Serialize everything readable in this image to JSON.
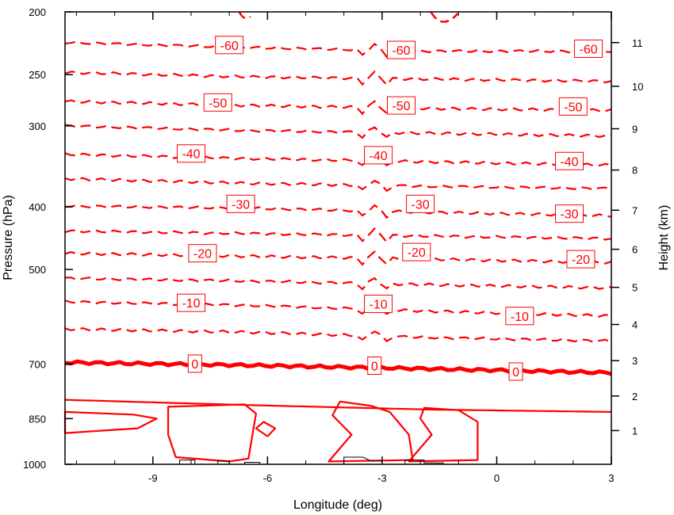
{
  "chart_data": {
    "type": "contour",
    "xlabel": "Longitude (deg)",
    "ylabel_left": "Pressure (hPa)",
    "ylabel_right": "Height (km)",
    "xlim": [
      -11.3,
      3.0
    ],
    "x_ticks": [
      -9,
      -6,
      -3,
      0,
      3
    ],
    "x_tick_labels": [
      "-9",
      "-6",
      "-3",
      "0",
      "3"
    ],
    "pressure_lim": [
      1000,
      200
    ],
    "pressure_ticks": [
      200,
      250,
      300,
      400,
      500,
      700,
      850,
      1000
    ],
    "pressure_tick_labels": [
      "200",
      "250",
      "300",
      "400",
      "500",
      "700",
      "850",
      "1000"
    ],
    "height_ticks_km": [
      1,
      2,
      3,
      4,
      5,
      6,
      7,
      8,
      9,
      10,
      11
    ],
    "height_tick_labels": [
      "1",
      "2",
      "3",
      "4",
      "5",
      "6",
      "7",
      "8",
      "9",
      "10",
      "11"
    ],
    "contour_interval": 5,
    "line_color": "#ff0000",
    "terrain_color": "#000000",
    "contours": [
      {
        "value": -65,
        "style": "dashed",
        "label": "",
        "p": [
          201,
          204,
          206,
          204
        ],
        "x_range": [
          -6.5,
          -1.0
        ]
      },
      {
        "value": -60,
        "style": "dashed",
        "label": "-60",
        "p": [
          223,
          227,
          230,
          230
        ],
        "label_x": [
          -7.0,
          -2.5,
          2.4
        ],
        "label_p": [
          225,
          229,
          228
        ]
      },
      {
        "value": -55,
        "style": "dashed",
        "label": "",
        "p": [
          248,
          252,
          254,
          256
        ]
      },
      {
        "value": -50,
        "style": "dashed",
        "label": "-50",
        "p": [
          275,
          279,
          282,
          284
        ],
        "label_x": [
          -7.3,
          -2.5,
          2.0
        ],
        "label_p": [
          276,
          279,
          280
        ]
      },
      {
        "value": -45,
        "style": "dashed",
        "label": "",
        "p": [
          300,
          305,
          308,
          311
        ]
      },
      {
        "value": -40,
        "style": "dashed",
        "label": "-40",
        "p": [
          332,
          337,
          341,
          345
        ],
        "label_x": [
          -8.0,
          -3.1,
          1.9
        ],
        "label_p": [
          331,
          333,
          340
        ]
      },
      {
        "value": -35,
        "style": "dashed",
        "label": "",
        "p": [
          362,
          368,
          372,
          375
        ]
      },
      {
        "value": -30,
        "style": "dashed",
        "label": "-30",
        "p": [
          399,
          402,
          408,
          413
        ],
        "label_x": [
          -6.7,
          -2.0,
          1.9
        ],
        "label_p": [
          396,
          396,
          410
        ]
      },
      {
        "value": -25,
        "style": "dashed",
        "label": "",
        "p": [
          436,
          440,
          444,
          448
        ]
      },
      {
        "value": -20,
        "style": "dashed",
        "label": "-20",
        "p": [
          472,
          477,
          482,
          488
        ],
        "label_x": [
          -7.7,
          -2.1,
          2.2
        ],
        "label_p": [
          472,
          470,
          482
        ]
      },
      {
        "value": -15,
        "style": "dashed",
        "label": "",
        "p": [
          516,
          521,
          528,
          534
        ]
      },
      {
        "value": -10,
        "style": "dashed",
        "label": "-10",
        "p": [
          561,
          568,
          580,
          590
        ],
        "label_x": [
          -8.0,
          -3.1,
          0.6
        ],
        "label_p": [
          563,
          565,
          590
        ]
      },
      {
        "value": -5,
        "style": "dashed",
        "label": "",
        "p": [
          618,
          625,
          637,
          645
        ]
      },
      {
        "value": 0,
        "style": "thick-solid",
        "label": "0",
        "p": [
          696,
          703,
          712,
          722
        ],
        "label_x": [
          -7.9,
          -3.2,
          0.5
        ],
        "label_p": [
          699,
          704,
          719
        ]
      },
      {
        "value": 5,
        "style": "solid",
        "label": "",
        "p": [
          795,
          810,
          823,
          830
        ]
      }
    ],
    "contour_labels": [
      "-60",
      "-50",
      "-40",
      "-30",
      "-20",
      "-10",
      "0"
    ]
  }
}
